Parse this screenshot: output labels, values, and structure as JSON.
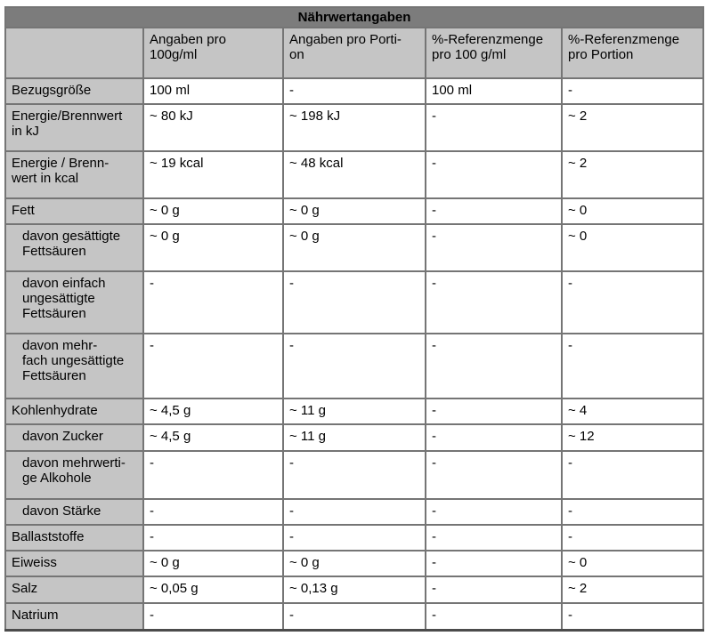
{
  "title": "Nährwertangaben",
  "columns": [
    "",
    "Angaben pro\n100g/ml",
    "Angaben pro Porti-\non",
    "%-Referenzmenge\npro 100 g/ml",
    "%-Referenzmenge\npro Portion"
  ],
  "rows": [
    {
      "label": "Bezugsgröße",
      "indent": false,
      "values": [
        "100 ml",
        "-",
        "100 ml",
        "-"
      ]
    },
    {
      "label": "Energie/Brennwert\nin kJ",
      "indent": false,
      "values": [
        "~ 80 kJ",
        "~ 198 kJ",
        "-",
        "~ 2"
      ]
    },
    {
      "label": "Energie / Brenn-\nwert in kcal",
      "indent": false,
      "values": [
        "~ 19 kcal",
        "~ 48 kcal",
        "-",
        "~ 2"
      ]
    },
    {
      "label": "Fett",
      "indent": false,
      "values": [
        "~ 0 g",
        "~ 0 g",
        "-",
        "~ 0"
      ]
    },
    {
      "label": "davon gesättigte\nFettsäuren",
      "indent": true,
      "values": [
        "~ 0 g",
        "~ 0 g",
        "-",
        "~ 0"
      ]
    },
    {
      "label": "davon einfach\nungesättigte\nFettsäuren",
      "indent": true,
      "values": [
        "-",
        "-",
        "-",
        "-"
      ]
    },
    {
      "label": "davon mehr-\nfach ungesättigte\nFettsäuren",
      "indent": true,
      "values": [
        "-",
        "-",
        "-",
        "-"
      ]
    },
    {
      "label": "Kohlenhydrate",
      "indent": false,
      "values": [
        "~ 4,5 g",
        "~ 11 g",
        "-",
        "~ 4"
      ]
    },
    {
      "label": "davon Zucker",
      "indent": true,
      "values": [
        "~ 4,5 g",
        "~ 11 g",
        "-",
        "~ 12"
      ]
    },
    {
      "label": "davon mehrwerti-\nge Alkohole",
      "indent": true,
      "values": [
        "-",
        "-",
        "-",
        "-"
      ]
    },
    {
      "label": "davon Stärke",
      "indent": true,
      "values": [
        "-",
        "-",
        "-",
        "-"
      ]
    },
    {
      "label": "Ballaststoffe",
      "indent": false,
      "values": [
        "-",
        "-",
        "-",
        "-"
      ]
    },
    {
      "label": "Eiweiss",
      "indent": false,
      "values": [
        "~ 0 g",
        "~ 0 g",
        "-",
        "~ 0"
      ]
    },
    {
      "label": "Salz",
      "indent": false,
      "values": [
        "~ 0,05 g",
        "~ 0,13 g",
        "-",
        "~ 2"
      ]
    },
    {
      "label": "Natrium",
      "indent": false,
      "values": [
        "-",
        "-",
        "-",
        "-"
      ]
    }
  ],
  "colors": {
    "title_bg": "#7c7c7c",
    "header_bg": "#c5c5c5",
    "cell_bg": "#ffffff",
    "border": "#757575",
    "outer_border": "#4c4c4c",
    "text": "#000000"
  }
}
